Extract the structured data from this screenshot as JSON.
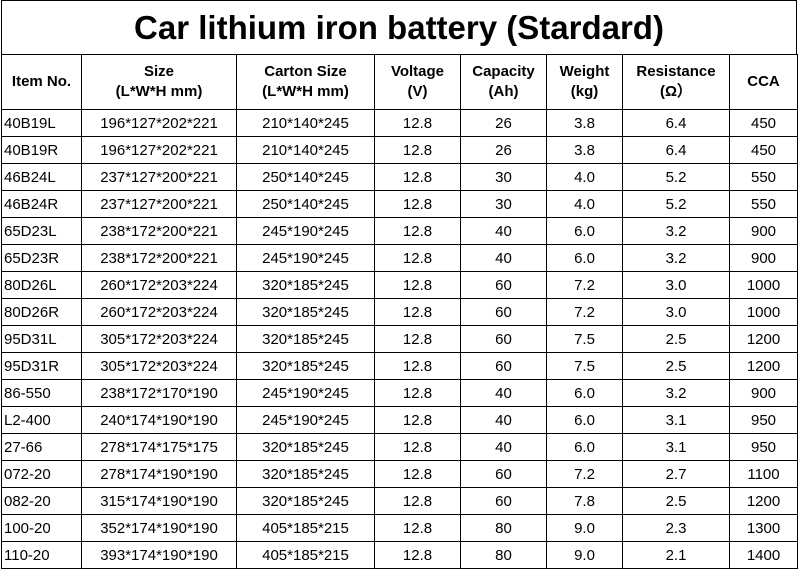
{
  "title": "Car lithium iron battery (Stardard)",
  "headers": [
    {
      "line1": "Item No.",
      "line2": ""
    },
    {
      "line1": "Size",
      "line2": "(L*W*H mm)"
    },
    {
      "line1": "Carton Size",
      "line2": "(L*W*H mm)"
    },
    {
      "line1": "Voltage",
      "line2": "(V)"
    },
    {
      "line1": "Capacity",
      "line2": "(Ah)"
    },
    {
      "line1": "Weight",
      "line2": "(kg)"
    },
    {
      "line1": "Resistance",
      "line2": "(Ω）"
    },
    {
      "line1": "CCA",
      "line2": ""
    }
  ],
  "rows": [
    [
      "40B19L",
      "196*127*202*221",
      "210*140*245",
      "12.8",
      "26",
      "3.8",
      "6.4",
      "450"
    ],
    [
      "40B19R",
      "196*127*202*221",
      "210*140*245",
      "12.8",
      "26",
      "3.8",
      "6.4",
      "450"
    ],
    [
      "46B24L",
      "237*127*200*221",
      "250*140*245",
      "12.8",
      "30",
      "4.0",
      "5.2",
      "550"
    ],
    [
      "46B24R",
      "237*127*200*221",
      "250*140*245",
      "12.8",
      "30",
      "4.0",
      "5.2",
      "550"
    ],
    [
      "65D23L",
      "238*172*200*221",
      "245*190*245",
      "12.8",
      "40",
      "6.0",
      "3.2",
      "900"
    ],
    [
      "65D23R",
      "238*172*200*221",
      "245*190*245",
      "12.8",
      "40",
      "6.0",
      "3.2",
      "900"
    ],
    [
      "80D26L",
      "260*172*203*224",
      "320*185*245",
      "12.8",
      "60",
      "7.2",
      "3.0",
      "1000"
    ],
    [
      "80D26R",
      "260*172*203*224",
      "320*185*245",
      "12.8",
      "60",
      "7.2",
      "3.0",
      "1000"
    ],
    [
      "95D31L",
      "305*172*203*224",
      "320*185*245",
      "12.8",
      "60",
      "7.5",
      "2.5",
      "1200"
    ],
    [
      "95D31R",
      "305*172*203*224",
      "320*185*245",
      "12.8",
      "60",
      "7.5",
      "2.5",
      "1200"
    ],
    [
      "86-550",
      "238*172*170*190",
      "245*190*245",
      "12.8",
      "40",
      "6.0",
      "3.2",
      "900"
    ],
    [
      "L2-400",
      "240*174*190*190",
      "245*190*245",
      "12.8",
      "40",
      "6.0",
      "3.1",
      "950"
    ],
    [
      "27-66",
      "278*174*175*175",
      "320*185*245",
      "12.8",
      "40",
      "6.0",
      "3.1",
      "950"
    ],
    [
      "072-20",
      "278*174*190*190",
      "320*185*245",
      "12.8",
      "60",
      "7.2",
      "2.7",
      "1100"
    ],
    [
      "082-20",
      "315*174*190*190",
      "320*185*245",
      "12.8",
      "60",
      "7.8",
      "2.5",
      "1200"
    ],
    [
      "100-20",
      "352*174*190*190",
      "405*185*215",
      "12.8",
      "80",
      "9.0",
      "2.3",
      "1300"
    ],
    [
      "110-20",
      "393*174*190*190",
      "405*185*215",
      "12.8",
      "80",
      "9.0",
      "2.1",
      "1400"
    ]
  ]
}
